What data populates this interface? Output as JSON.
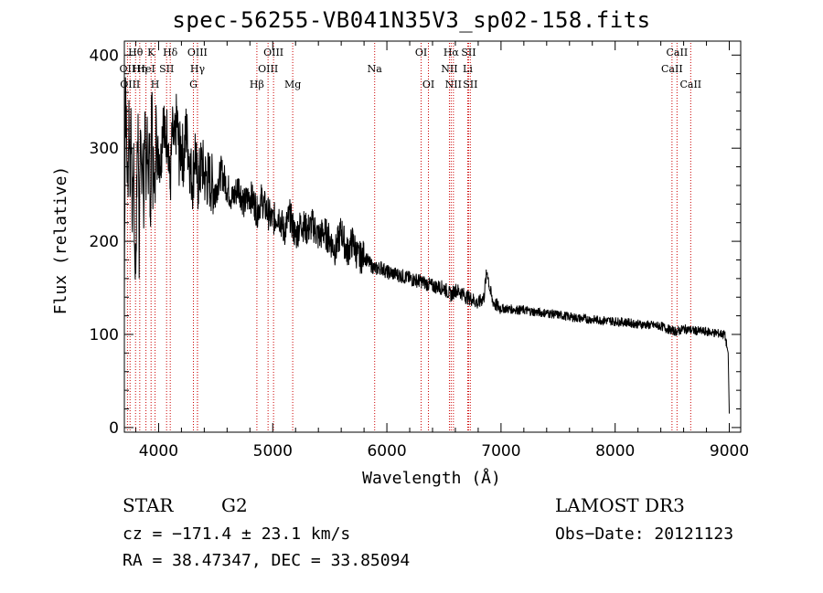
{
  "chart_data": {
    "type": "line",
    "title": "spec-56255-VB041N35V3_sp02-158.fits",
    "xlabel": "Wavelength (Å)",
    "ylabel": "Flux (relative)",
    "xlim": [
      3700,
      9100
    ],
    "ylim": [
      -5,
      415
    ],
    "xticks": [
      4000,
      5000,
      6000,
      7000,
      8000,
      9000
    ],
    "yticks": [
      0,
      100,
      200,
      300,
      400
    ],
    "series": [
      {
        "name": "spectrum",
        "x": [
          3700,
          3710,
          3720,
          3730,
          3740,
          3750,
          3760,
          3770,
          3780,
          3790,
          3800,
          3810,
          3820,
          3830,
          3840,
          3850,
          3860,
          3870,
          3880,
          3890,
          3900,
          3910,
          3920,
          3930,
          3940,
          3950,
          3960,
          3970,
          3980,
          3990,
          4000,
          4020,
          4040,
          4060,
          4080,
          4100,
          4120,
          4140,
          4160,
          4180,
          4200,
          4220,
          4240,
          4260,
          4280,
          4300,
          4320,
          4340,
          4360,
          4380,
          4400,
          4450,
          4500,
          4550,
          4600,
          4650,
          4700,
          4750,
          4800,
          4850,
          4860,
          4900,
          4950,
          5000,
          5050,
          5100,
          5150,
          5200,
          5250,
          5300,
          5350,
          5400,
          5450,
          5500,
          5550,
          5600,
          5650,
          5700,
          5750,
          5800,
          5850,
          5900,
          5950,
          6000,
          6100,
          6200,
          6300,
          6400,
          6500,
          6563,
          6600,
          6650,
          6700,
          6750,
          6800,
          6850,
          6870,
          6880,
          6900,
          6920,
          6950,
          7000,
          7100,
          7200,
          7300,
          7400,
          7500,
          7600,
          7700,
          7800,
          7900,
          8000,
          8100,
          8200,
          8300,
          8400,
          8500,
          8542,
          8600,
          8700,
          8800,
          8900,
          8960,
          8990,
          9000
        ],
        "values": [
          140,
          380,
          300,
          255,
          340,
          270,
          325,
          215,
          300,
          190,
          175,
          265,
          330,
          185,
          350,
          250,
          300,
          230,
          355,
          215,
          330,
          270,
          310,
          210,
          360,
          260,
          290,
          230,
          355,
          280,
          300,
          285,
          345,
          300,
          325,
          255,
          315,
          300,
          335,
          290,
          305,
          285,
          320,
          300,
          275,
          265,
          300,
          260,
          270,
          285,
          270,
          265,
          255,
          275,
          258,
          245,
          260,
          240,
          250,
          238,
          230,
          245,
          232,
          222,
          230,
          210,
          228,
          205,
          220,
          212,
          218,
          205,
          210,
          202,
          190,
          212,
          188,
          200,
          182,
          184,
          176,
          170,
          172,
          167,
          164,
          160,
          157,
          152,
          150,
          142,
          148,
          145,
          140,
          138,
          133,
          140,
          162,
          168,
          150,
          138,
          132,
          128,
          127,
          126,
          124,
          123,
          121,
          119,
          117,
          116,
          115,
          114,
          113,
          111,
          110,
          109,
          104,
          103,
          106,
          104,
          103,
          101,
          100,
          80,
          15
        ]
      }
    ],
    "lines": [
      {
        "label": "Hθ",
        "x": 3798,
        "row": 0
      },
      {
        "label": "OII",
        "x": 3727,
        "row": 1
      },
      {
        "label": "OIII",
        "x": 3750,
        "row": 2
      },
      {
        "label": "Hη",
        "x": 3835,
        "row": 1
      },
      {
        "label": "K",
        "x": 3934,
        "row": 0
      },
      {
        "label": "HeI",
        "x": 3889,
        "row": 1
      },
      {
        "label": "H",
        "x": 3969,
        "row": 2
      },
      {
        "label": "Hδ",
        "x": 4102,
        "row": 0
      },
      {
        "label": "SII",
        "x": 4070,
        "row": 1
      },
      {
        "label": "OIII",
        "x": 4340,
        "row": 0
      },
      {
        "label": "Hγ",
        "x": 4341,
        "row": 1
      },
      {
        "label": "G",
        "x": 4305,
        "row": 2
      },
      {
        "label": "OIII",
        "x": 5007,
        "row": 0
      },
      {
        "label": "OIII",
        "x": 4959,
        "row": 1
      },
      {
        "label": "Hβ",
        "x": 4861,
        "row": 2
      },
      {
        "label": "Mg",
        "x": 5175,
        "row": 2
      },
      {
        "label": "Na",
        "x": 5893,
        "row": 1
      },
      {
        "label": "OI",
        "x": 6300,
        "row": 0
      },
      {
        "label": "OI",
        "x": 6364,
        "row": 2
      },
      {
        "label": "Hα",
        "x": 6563,
        "row": 0
      },
      {
        "label": "SII",
        "x": 6716,
        "row": 0
      },
      {
        "label": "NII",
        "x": 6548,
        "row": 1
      },
      {
        "label": "Li",
        "x": 6708,
        "row": 1
      },
      {
        "label": "NII",
        "x": 6583,
        "row": 2
      },
      {
        "label": "SII",
        "x": 6731,
        "row": 2
      },
      {
        "label": "CaII",
        "x": 8542,
        "row": 0
      },
      {
        "label": "CaII",
        "x": 8498,
        "row": 1
      },
      {
        "label": "CaII",
        "x": 8662,
        "row": 2
      }
    ]
  },
  "info": {
    "object_class": "STAR",
    "subclass": "G2",
    "survey": "LAMOST DR3",
    "redshift": "cz = −171.4 ± 23.1 km/s",
    "obs_date": "Obs−Date: 20121123",
    "coords": "RA =  38.47347, DEC =  33.85094"
  }
}
